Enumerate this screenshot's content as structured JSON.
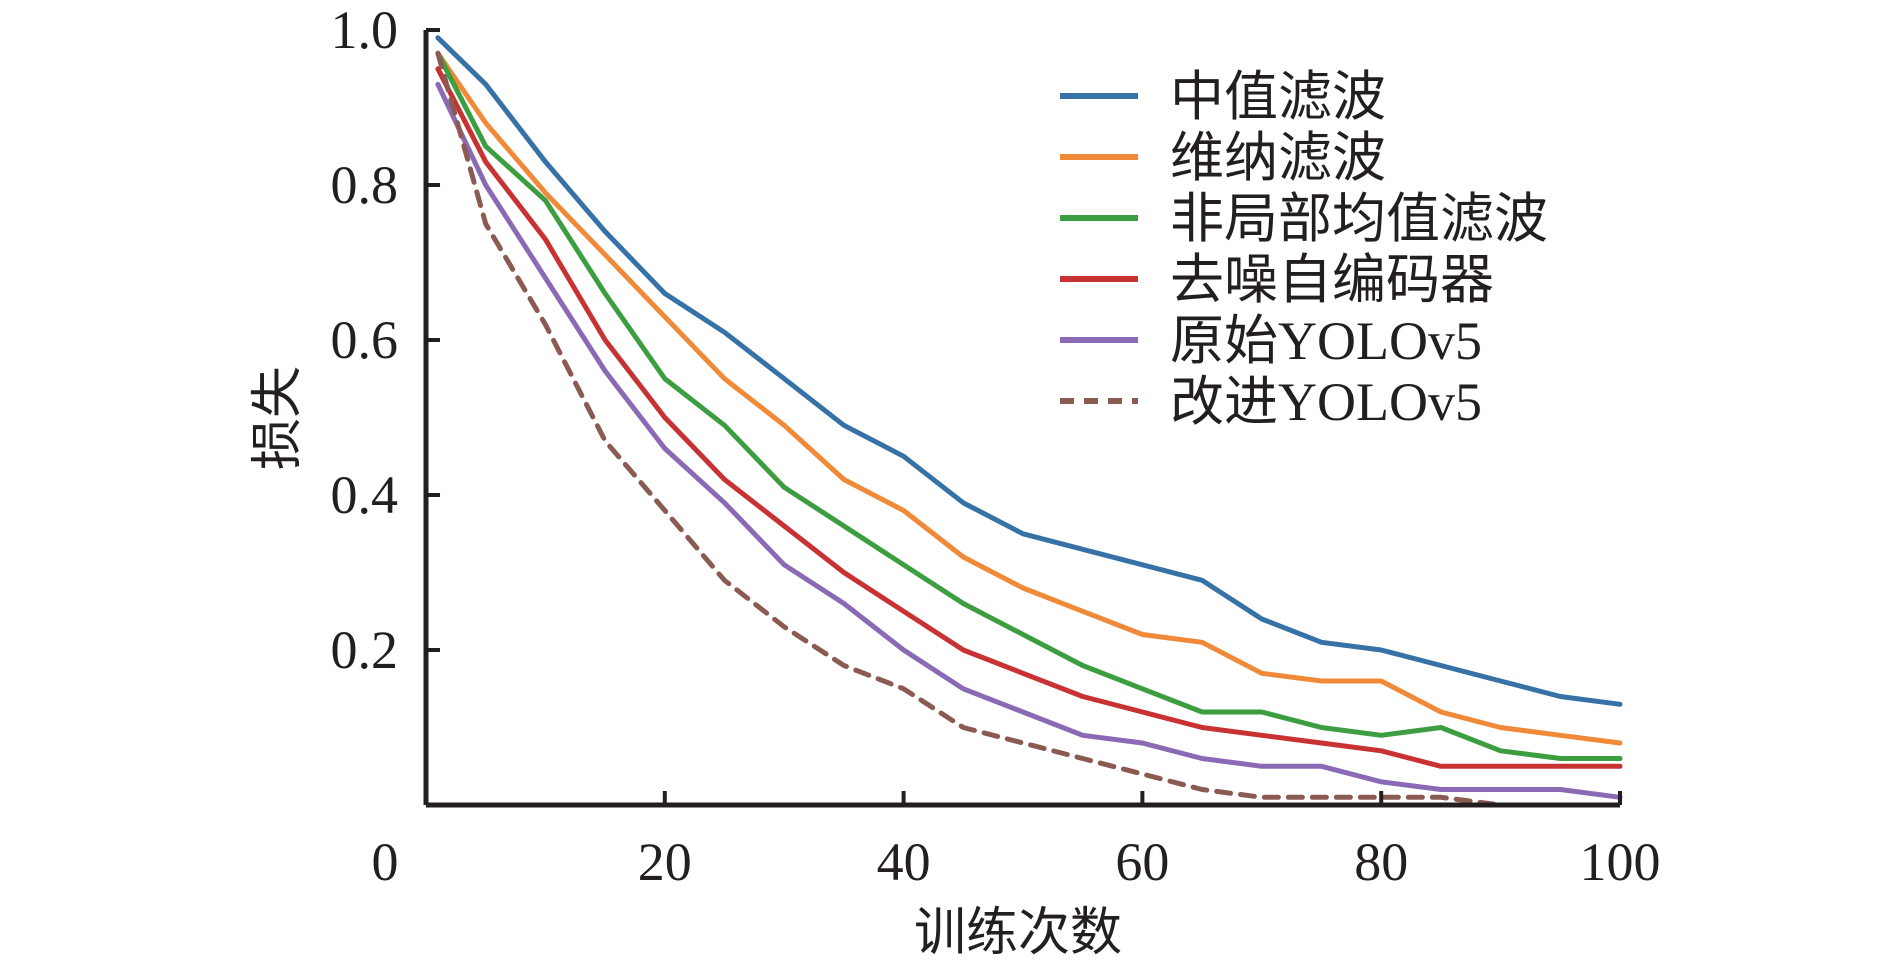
{
  "chart_data": {
    "type": "line",
    "title": "",
    "xlabel": "训练次数",
    "ylabel": "损失",
    "xlim": [
      0,
      100
    ],
    "ylim": [
      0,
      1.0
    ],
    "x_origin_label": "0",
    "xticks": [
      20,
      40,
      60,
      80,
      100
    ],
    "xtick_labels": [
      "20",
      "40",
      "60",
      "80",
      "100"
    ],
    "yticks": [
      0.2,
      0.4,
      0.6,
      0.8,
      1.0
    ],
    "ytick_labels": [
      "0.2",
      "0.4",
      "0.6",
      "0.8",
      "1.0"
    ],
    "grid": false,
    "legend_position": "top-right",
    "x": [
      1,
      5,
      10,
      15,
      20,
      25,
      30,
      35,
      40,
      45,
      50,
      55,
      60,
      65,
      70,
      75,
      80,
      85,
      90,
      95,
      100
    ],
    "series": [
      {
        "name": "中值滤波",
        "color": "#3772a6",
        "style": "solid",
        "values": [
          0.99,
          0.93,
          0.83,
          0.74,
          0.66,
          0.61,
          0.55,
          0.49,
          0.45,
          0.39,
          0.35,
          0.33,
          0.31,
          0.29,
          0.24,
          0.21,
          0.2,
          0.18,
          0.16,
          0.14,
          0.13
        ]
      },
      {
        "name": "维纳滤波",
        "color": "#f08a38",
        "style": "solid",
        "values": [
          0.97,
          0.88,
          0.79,
          0.71,
          0.63,
          0.55,
          0.49,
          0.42,
          0.38,
          0.32,
          0.28,
          0.25,
          0.22,
          0.21,
          0.17,
          0.16,
          0.16,
          0.12,
          0.1,
          0.09,
          0.08
        ]
      },
      {
        "name": "非局部均值滤波",
        "color": "#3d9e41",
        "style": "solid",
        "values": [
          0.97,
          0.85,
          0.78,
          0.66,
          0.55,
          0.49,
          0.41,
          0.36,
          0.31,
          0.26,
          0.22,
          0.18,
          0.15,
          0.12,
          0.12,
          0.1,
          0.09,
          0.1,
          0.07,
          0.06,
          0.06
        ]
      },
      {
        "name": "去噪自编码器",
        "color": "#c83232",
        "style": "solid",
        "values": [
          0.95,
          0.83,
          0.73,
          0.6,
          0.5,
          0.42,
          0.36,
          0.3,
          0.25,
          0.2,
          0.17,
          0.14,
          0.12,
          0.1,
          0.09,
          0.08,
          0.07,
          0.05,
          0.05,
          0.05,
          0.05
        ]
      },
      {
        "name": "原始YOLOv5",
        "color": "#8a6ab5",
        "style": "solid",
        "values": [
          0.93,
          0.8,
          0.68,
          0.56,
          0.46,
          0.39,
          0.31,
          0.26,
          0.2,
          0.15,
          0.12,
          0.09,
          0.08,
          0.06,
          0.05,
          0.05,
          0.03,
          0.02,
          0.02,
          0.02,
          0.01
        ]
      },
      {
        "name": "改进YOLOv5",
        "color": "#8b5a52",
        "style": "dashed",
        "values": [
          0.97,
          0.75,
          0.62,
          0.47,
          0.38,
          0.29,
          0.23,
          0.18,
          0.15,
          0.1,
          0.08,
          0.06,
          0.04,
          0.02,
          0.01,
          0.01,
          0.01,
          0.01,
          0.0,
          0.0,
          0.0
        ]
      }
    ]
  }
}
